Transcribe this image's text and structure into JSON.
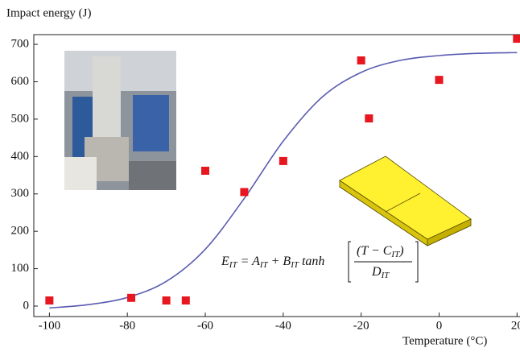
{
  "chart_data": {
    "type": "scatter",
    "y_label": "Impact energy (J)",
    "x_label": "Temperature (°C)",
    "xlim": [
      -104,
      22
    ],
    "ylim": [
      -28,
      726
    ],
    "xticks": [
      -100,
      -80,
      -60,
      -40,
      -20,
      0,
      20
    ],
    "yticks": [
      0,
      100,
      200,
      300,
      400,
      500,
      600,
      700
    ],
    "series": [
      {
        "kind": "points",
        "color": "#e8161e",
        "x": [
          -100,
          -79,
          -70,
          -65,
          -60,
          -50,
          -40,
          -20,
          -18,
          0,
          20
        ],
        "values": [
          15,
          22,
          15,
          15,
          362,
          305,
          388,
          657,
          502,
          605,
          715
        ]
      },
      {
        "kind": "curve",
        "color": "#5a5cb0",
        "x": [
          -100,
          -90,
          -80,
          -70,
          -60,
          -50,
          -40,
          -30,
          -20,
          -10,
          0,
          10,
          20
        ],
        "values": [
          -5,
          4,
          23,
          66,
          152,
          288,
          441,
          559,
          625,
          657,
          670,
          676,
          678
        ]
      }
    ],
    "equation": {
      "main": [
        "E",
        "IT",
        " =  A",
        "IT",
        " + B",
        "IT",
        " tanh"
      ],
      "numerator": [
        "(T − C",
        "IT",
        ")"
      ],
      "denominator": [
        "D",
        "IT"
      ]
    }
  }
}
